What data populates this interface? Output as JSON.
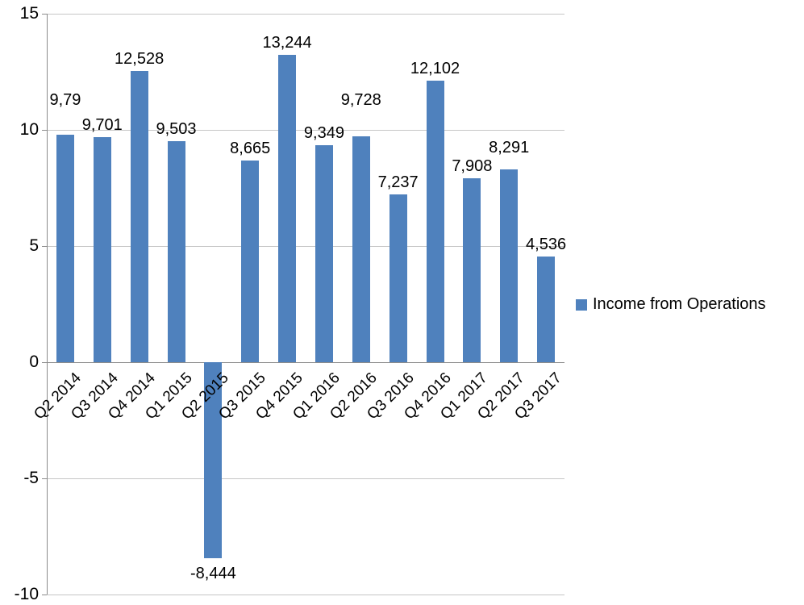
{
  "chart_data": {
    "type": "bar",
    "title": "",
    "xlabel": "",
    "ylabel": "",
    "categories": [
      "Q2 2014",
      "Q3 2014",
      "Q4 2014",
      "Q1 2015",
      "Q2 2015",
      "Q3 2015",
      "Q4 2015",
      "Q1 2016",
      "Q2 2016",
      "Q3 2016",
      "Q4 2016",
      "Q1 2017",
      "Q2 2017",
      "Q3 2017"
    ],
    "values": [
      9.79,
      9.701,
      12.528,
      9.503,
      -8.444,
      8.665,
      13.244,
      9.349,
      9.728,
      7.237,
      12.102,
      7.908,
      8.291,
      4.536
    ],
    "data_labels": [
      "9,79",
      "9,701",
      "12,528",
      "9,503",
      "-8,444",
      "8,665",
      "13,244",
      "9,349",
      "9,728",
      "7,237",
      "12,102",
      "7,908",
      "8,291",
      "4,536"
    ],
    "label_dy": [
      -28,
      0,
      0,
      0,
      0,
      0,
      0,
      0,
      -30,
      0,
      0,
      0,
      -12,
      0
    ],
    "ylim": [
      -10,
      15
    ],
    "yticks": [
      15,
      10,
      5,
      0,
      -5,
      -10
    ],
    "ytick_labels": [
      "15",
      "10",
      "5",
      "0",
      "-5",
      "-10"
    ],
    "grid": true,
    "bar_color": "#4F81BD",
    "legend": {
      "position": "right",
      "entries": [
        {
          "label": "Income from Operations",
          "color": "#4F81BD"
        }
      ]
    }
  }
}
